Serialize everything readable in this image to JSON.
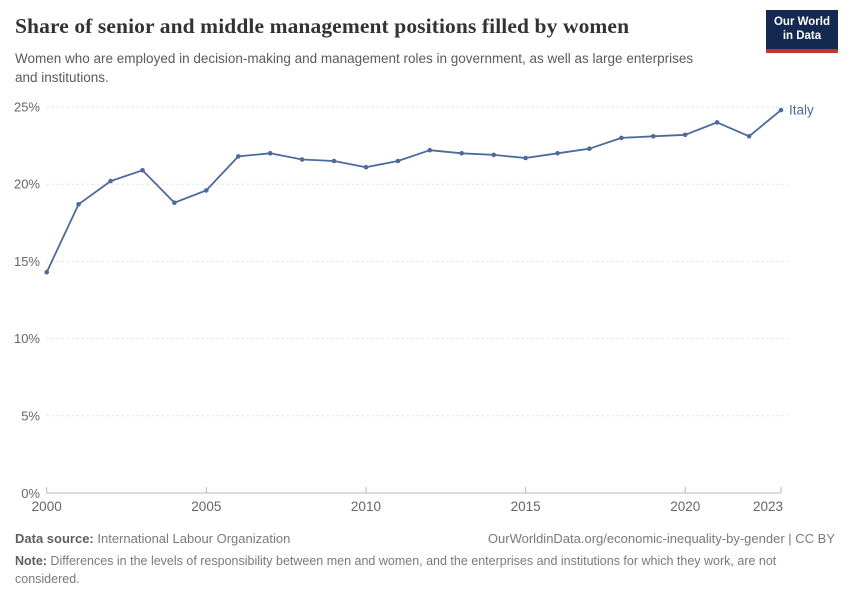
{
  "header": {
    "title": "Share of senior and middle management positions filled by women",
    "subtitle": "Women who are employed in decision-making and management roles in government, as well as large enterprises and institutions.",
    "logo_line1": "Our World",
    "logo_line2": "in Data"
  },
  "chart_data": {
    "type": "line",
    "title": "Share of senior and middle management positions filled by women",
    "xlabel": "",
    "ylabel": "",
    "ylim": [
      0,
      25
    ],
    "grid": "horizontal-dashed",
    "legend_position": "end-of-line",
    "x": [
      2000,
      2001,
      2002,
      2003,
      2004,
      2005,
      2006,
      2007,
      2008,
      2009,
      2010,
      2011,
      2012,
      2013,
      2014,
      2015,
      2016,
      2017,
      2018,
      2019,
      2020,
      2021,
      2022,
      2023
    ],
    "series": [
      {
        "name": "Italy",
        "color": "#4c6a9c",
        "values": [
          14.3,
          18.7,
          20.2,
          20.9,
          18.8,
          19.6,
          21.8,
          22.0,
          21.6,
          21.5,
          21.1,
          21.5,
          22.2,
          22.0,
          21.9,
          21.7,
          22.0,
          22.3,
          23.0,
          23.1,
          23.2,
          24.0,
          23.1,
          24.8
        ]
      }
    ],
    "y_ticks": [
      {
        "value": 0,
        "label": "0%"
      },
      {
        "value": 5,
        "label": "5%"
      },
      {
        "value": 10,
        "label": "10%"
      },
      {
        "value": 15,
        "label": "15%"
      },
      {
        "value": 20,
        "label": "20%"
      },
      {
        "value": 25,
        "label": "25%"
      }
    ],
    "x_ticks": [
      {
        "value": 2000,
        "label": "2000"
      },
      {
        "value": 2005,
        "label": "2005"
      },
      {
        "value": 2010,
        "label": "2010"
      },
      {
        "value": 2015,
        "label": "2015"
      },
      {
        "value": 2020,
        "label": "2020"
      },
      {
        "value": 2023,
        "label": "2023"
      }
    ],
    "end_label": "Italy"
  },
  "colors": {
    "series": "#4c6a9c",
    "gridline": "#dcdcdc",
    "axis": "#b8b8b8",
    "tick_text": "#666666",
    "logo_bg": "#13294f",
    "logo_accent": "#c0352c"
  },
  "footer": {
    "datasource_label": "Data source:",
    "datasource_value": " International Labour Organization",
    "citation": "OurWorldinData.org/economic-inequality-by-gender | CC BY",
    "note_label": "Note:",
    "note_value": " Differences in the levels of responsibility between men and women, and the enterprises and institutions for which they work, are not considered."
  }
}
